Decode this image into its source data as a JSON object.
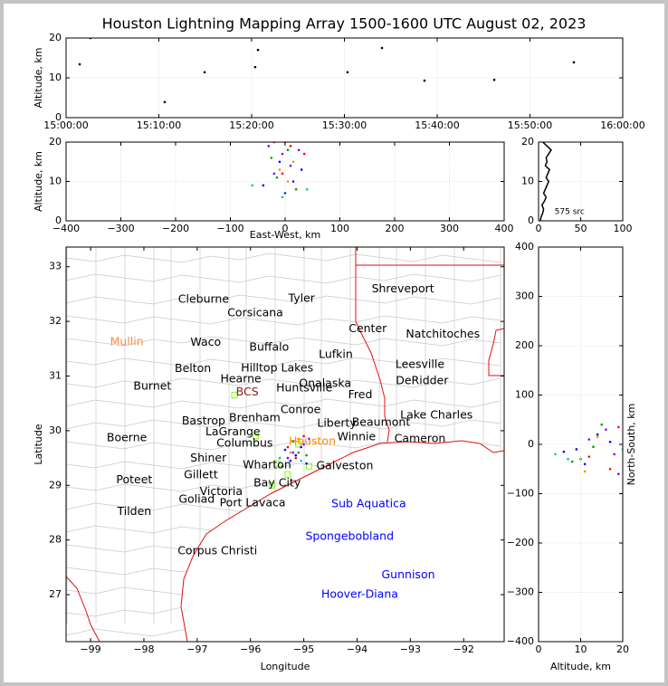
{
  "title": "Houston Lightning Mapping Array 1500-1600 UTC August 02, 2023",
  "chart_data": [
    {
      "type": "scatter",
      "ylabel": "Altitude, km",
      "xlim": [
        "15:00:00",
        "16:00:00"
      ],
      "xticks": [
        "15:00:00",
        "15:10:00",
        "15:20:00",
        "15:30:00",
        "15:40:00",
        "15:50:00",
        "16:00:00"
      ],
      "ylim": [
        0,
        20
      ],
      "yticks": [
        0,
        10,
        20
      ],
      "grid": true,
      "series": [
        {
          "color": "#000000",
          "x": [
            "15:01:28",
            "15:02:38",
            "15:10:38",
            "15:14:56",
            "15:20:23",
            "15:20:41",
            "15:30:20",
            "15:34:03",
            "15:38:38",
            "15:46:09",
            "15:54:44"
          ],
          "values": [
            13.4,
            20,
            3.9,
            11.4,
            12.7,
            17.0,
            11.4,
            17.5,
            9.3,
            9.5,
            13.9
          ]
        }
      ]
    },
    {
      "type": "scatter",
      "xlabel": "East-West, km",
      "ylabel": "Altitude, km",
      "xlim": [
        -400,
        400
      ],
      "xticks": [
        {
          "value": -400,
          "label": "−400"
        },
        {
          "value": -300,
          "label": "−300"
        },
        {
          "value": -200,
          "label": "−200"
        },
        {
          "value": -100,
          "label": "−100"
        },
        0,
        100,
        200,
        300,
        400
      ],
      "ylim": [
        0,
        20
      ],
      "yticks": [
        0,
        10,
        20
      ],
      "grid": true,
      "series": [
        {
          "color": "#8000ff",
          "x": [
            -30,
            -5,
            10,
            25,
            -20
          ],
          "values": [
            19,
            17,
            14,
            18,
            12
          ]
        },
        {
          "color": "#0000ff",
          "x": [
            -40,
            0,
            15,
            -10,
            30
          ],
          "values": [
            9,
            7,
            10,
            15,
            13
          ]
        },
        {
          "color": "#00a000",
          "x": [
            -15,
            5,
            20,
            -25
          ],
          "values": [
            11,
            18,
            8,
            16
          ]
        },
        {
          "color": "#ff0000",
          "x": [
            -20,
            0,
            10,
            -5,
            35
          ],
          "values": [
            20,
            20,
            19,
            12,
            17
          ]
        },
        {
          "color": "#ff8c00",
          "x": [
            -10,
            15,
            5
          ],
          "values": [
            13,
            15,
            10
          ]
        },
        {
          "color": "#00c0c0",
          "x": [
            -60,
            -5,
            40
          ],
          "values": [
            9,
            6,
            8
          ]
        }
      ]
    },
    {
      "type": "line",
      "xlim": [
        0,
        100
      ],
      "xticks": [
        0,
        50,
        100
      ],
      "ylim": [
        0,
        20
      ],
      "yticks": [
        0,
        10,
        20
      ],
      "grid": true,
      "annotations": [
        {
          "text": "575 src",
          "x": 19,
          "y": 2.3
        }
      ],
      "series": [
        {
          "color": "#000000",
          "x": [
            2,
            3,
            5,
            6,
            4,
            7,
            9,
            6,
            8,
            10,
            12,
            9,
            11,
            13,
            8,
            10,
            9,
            12,
            15,
            10,
            5
          ],
          "values": [
            0,
            1,
            2,
            3,
            4,
            5,
            6,
            7,
            8,
            9,
            10,
            11,
            12,
            13,
            14,
            15,
            16,
            17,
            18,
            19,
            20
          ]
        }
      ]
    },
    {
      "type": "map",
      "xlabel": "Longitude",
      "ylabel": "Latitude",
      "xlim": [
        -99.46,
        -91.24
      ],
      "xticks": [
        {
          "value": -99,
          "label": "−99"
        },
        {
          "value": -98,
          "label": "−98"
        },
        {
          "value": -97,
          "label": "−97"
        },
        {
          "value": -96,
          "label": "−96"
        },
        {
          "value": -95,
          "label": "−95"
        },
        {
          "value": -94,
          "label": "−94"
        },
        {
          "value": -93,
          "label": "−93"
        },
        {
          "value": -92,
          "label": "−92"
        }
      ],
      "ylim": [
        26.14,
        33.36
      ],
      "yticks": [
        27,
        28,
        29,
        30,
        31,
        32,
        33
      ],
      "grid": false,
      "annotations": [
        {
          "text": "Cleburne",
          "x": -96.88,
          "y": 32.4
        },
        {
          "text": "Tyler",
          "x": -95.04,
          "y": 32.42
        },
        {
          "text": "Shreveport",
          "x": -93.14,
          "y": 32.59
        },
        {
          "text": "Corsicana",
          "x": -95.91,
          "y": 32.15
        },
        {
          "text": "Center",
          "x": -93.8,
          "y": 31.86
        },
        {
          "text": "Natchitoches",
          "x": -92.39,
          "y": 31.76
        },
        {
          "text": "Mullin",
          "x": -98.32,
          "y": 31.62,
          "color": "#ff8c40"
        },
        {
          "text": "Waco",
          "x": -96.84,
          "y": 31.61
        },
        {
          "text": "Buffalo",
          "x": -95.65,
          "y": 31.52
        },
        {
          "text": "Lufkin",
          "x": -94.4,
          "y": 31.39
        },
        {
          "text": "Leesville",
          "x": -92.82,
          "y": 31.21
        },
        {
          "text": "Belton",
          "x": -97.08,
          "y": 31.13
        },
        {
          "text": "Hilltop Lakes",
          "x": -95.5,
          "y": 31.14
        },
        {
          "text": "Hearne",
          "x": -96.18,
          "y": 30.94
        },
        {
          "text": "Onalaska",
          "x": -94.6,
          "y": 30.86
        },
        {
          "text": "DeRidder",
          "x": -92.78,
          "y": 30.91
        },
        {
          "text": "Burnet",
          "x": -97.84,
          "y": 30.81
        },
        {
          "text": "BCS",
          "x": -96.06,
          "y": 30.7,
          "color": "#8b1a1a"
        },
        {
          "text": "Huntsville",
          "x": -94.99,
          "y": 30.78
        },
        {
          "text": "Fred",
          "x": -93.94,
          "y": 30.65
        },
        {
          "text": "Conroe",
          "x": -95.06,
          "y": 30.38
        },
        {
          "text": "Lake Charles",
          "x": -92.51,
          "y": 30.28
        },
        {
          "text": "Bastrop",
          "x": -96.88,
          "y": 30.17
        },
        {
          "text": "Brenham",
          "x": -95.92,
          "y": 30.23
        },
        {
          "text": "Liberty",
          "x": -94.38,
          "y": 30.13
        },
        {
          "text": "Beaumont",
          "x": -93.55,
          "y": 30.15
        },
        {
          "text": "LaGrange",
          "x": -96.33,
          "y": 29.97
        },
        {
          "text": "Winnie",
          "x": -94.01,
          "y": 29.88
        },
        {
          "text": "Boerne",
          "x": -98.32,
          "y": 29.87
        },
        {
          "text": "Columbus",
          "x": -96.11,
          "y": 29.77
        },
        {
          "text": "Cameron",
          "x": -92.82,
          "y": 29.85
        },
        {
          "text": "Houston",
          "x": -94.84,
          "y": 29.8,
          "color": "#ff8c00"
        },
        {
          "text": "Shiner",
          "x": -96.79,
          "y": 29.49
        },
        {
          "text": "Wharton",
          "x": -95.69,
          "y": 29.37
        },
        {
          "text": "Galveston",
          "x": -94.23,
          "y": 29.35
        },
        {
          "text": "Gillett",
          "x": -96.93,
          "y": 29.19
        },
        {
          "text": "Poteet",
          "x": -98.18,
          "y": 29.1
        },
        {
          "text": "Bay City",
          "x": -95.5,
          "y": 29.04
        },
        {
          "text": "Victoria",
          "x": -96.55,
          "y": 28.88
        },
        {
          "text": "Goliad",
          "x": -97.01,
          "y": 28.74
        },
        {
          "text": "Port Lavaca",
          "x": -95.96,
          "y": 28.67
        },
        {
          "text": "Tilden",
          "x": -98.18,
          "y": 28.52
        },
        {
          "text": "Corpus Christi",
          "x": -96.62,
          "y": 27.8
        },
        {
          "text": "Sub Aquatica",
          "x": -93.78,
          "y": 28.66,
          "color": "#0000ff"
        },
        {
          "text": "Spongebobland",
          "x": -94.14,
          "y": 28.06,
          "color": "#0000ff"
        },
        {
          "text": "Gunnison",
          "x": -93.04,
          "y": 27.36,
          "color": "#0000ff"
        },
        {
          "text": "Hoover-Diana",
          "x": -93.95,
          "y": 27.0,
          "color": "#0000ff"
        }
      ],
      "series": [
        {
          "color": "#7fff00",
          "marker": "square",
          "x": [
            -96.3,
            -95.9,
            -95.5,
            -95.1,
            -95.3,
            -94.9,
            -95.6
          ],
          "values": [
            30.65,
            29.9,
            29.4,
            29.75,
            29.2,
            29.35,
            29.0
          ]
        },
        {
          "color": "#8000ff",
          "x": [
            -95.2,
            -95.0,
            -95.3,
            -94.9
          ],
          "values": [
            29.6,
            29.75,
            29.5,
            29.85
          ]
        },
        {
          "color": "#0000ff",
          "x": [
            -95.25,
            -95.15,
            -95.05,
            -95.35,
            -94.95
          ],
          "values": [
            29.45,
            29.55,
            29.7,
            29.65,
            29.4
          ]
        },
        {
          "color": "#00a000",
          "x": [
            -95.4,
            -95.1,
            -94.95,
            -95.2
          ],
          "values": [
            29.35,
            29.6,
            29.55,
            29.8
          ]
        },
        {
          "color": "#ff0000",
          "x": [
            -95.0,
            -95.3,
            -95.15
          ],
          "values": [
            29.9,
            29.7,
            29.5
          ]
        },
        {
          "color": "#ff8c00",
          "x": [
            -95.1,
            -95.25
          ],
          "values": [
            29.85,
            29.6
          ]
        },
        {
          "color": "#00c0c0",
          "x": [
            -95.45,
            -95.05
          ],
          "values": [
            29.5,
            29.45
          ]
        }
      ]
    },
    {
      "type": "scatter",
      "xlabel": "Altitude, km",
      "ylabel": "North-South, km",
      "xlim": [
        0,
        20
      ],
      "xticks": [
        0,
        10,
        20
      ],
      "ylim": [
        -400,
        400
      ],
      "yticks": [
        {
          "value": -400,
          "label": "−400"
        },
        {
          "value": -300,
          "label": "−300"
        },
        {
          "value": -200,
          "label": "−200"
        },
        {
          "value": -100,
          "label": "−100"
        },
        0,
        100,
        200,
        300,
        400
      ],
      "grid": true,
      "series": [
        {
          "color": "#8000ff",
          "x": [
            16,
            18,
            12,
            19
          ],
          "values": [
            30,
            -20,
            10,
            -60
          ]
        },
        {
          "color": "#0000ff",
          "x": [
            9,
            14,
            17,
            11,
            6
          ],
          "values": [
            -10,
            20,
            5,
            -40,
            -15
          ]
        },
        {
          "color": "#00a000",
          "x": [
            8,
            10,
            15,
            13
          ],
          "values": [
            -35,
            -30,
            40,
            -5
          ]
        },
        {
          "color": "#ff0000",
          "x": [
            19,
            17,
            12
          ],
          "values": [
            35,
            -50,
            -25
          ]
        },
        {
          "color": "#ff8c00",
          "x": [
            14,
            11
          ],
          "values": [
            15,
            -55
          ]
        },
        {
          "color": "#00c0c0",
          "x": [
            7,
            4,
            20
          ],
          "values": [
            -30,
            -20,
            -10
          ]
        }
      ]
    }
  ]
}
